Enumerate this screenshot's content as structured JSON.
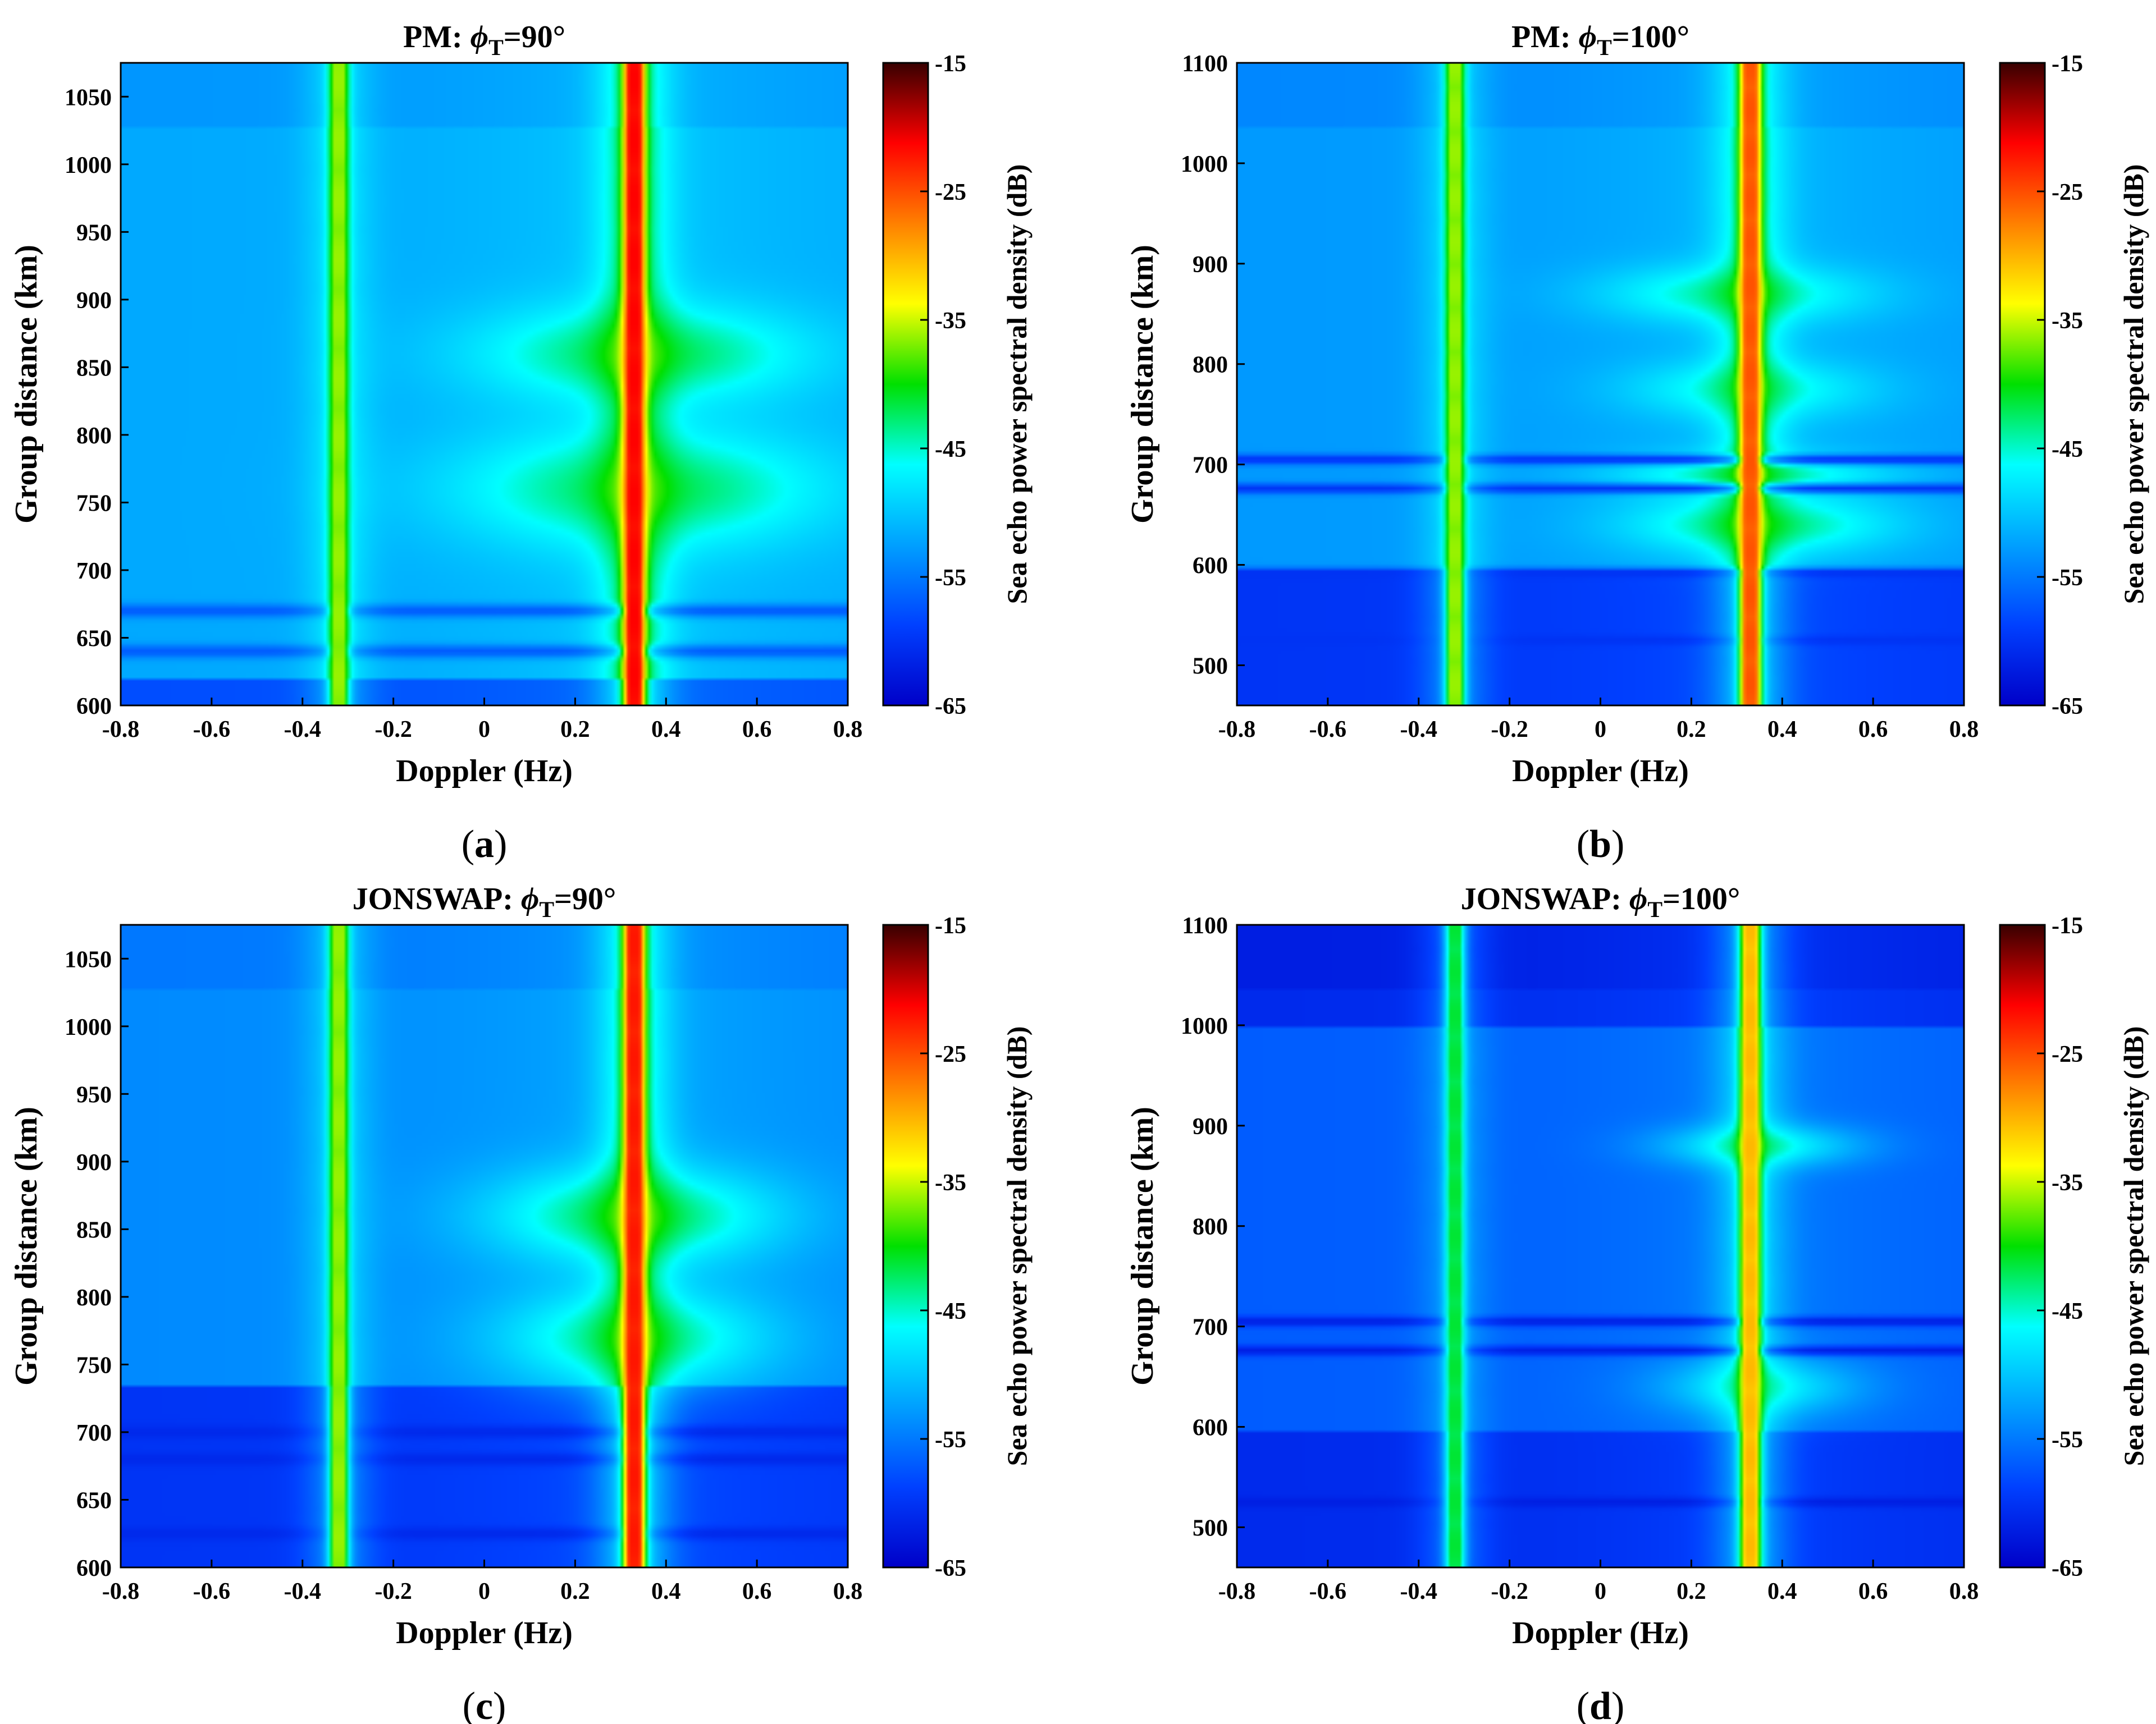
{
  "figure": {
    "colorbar_ticks": [
      "-15",
      "-25",
      "-35",
      "-45",
      "-55",
      "-65"
    ]
  },
  "chart_data": [
    {
      "type": "heatmap",
      "panel_label": "a",
      "title_prefix": "PM: ",
      "title_symbol": "ϕ",
      "title_subscript": "T",
      "title_suffix": "=90°",
      "xlabel": "Doppler (Hz)",
      "ylabel": "Group distance (km)",
      "colorbar_label": "Sea echo power spectral density (dB)",
      "xlim": [
        -0.8,
        0.8
      ],
      "ylim": [
        600,
        1075
      ],
      "clim": [
        -65,
        -15
      ],
      "xticks": [
        -0.8,
        -0.6,
        -0.4,
        -0.2,
        0,
        0.2,
        0.4,
        0.6,
        0.8
      ],
      "yticks": [
        600,
        650,
        700,
        750,
        800,
        850,
        900,
        950,
        1000,
        1050
      ],
      "bragg_peaks": [
        {
          "doppler": -0.32,
          "peak_db": -37,
          "halfwidth": 0.015
        },
        {
          "doppler": 0.33,
          "peak_db": -22,
          "halfwidth": 0.016
        }
      ],
      "background_db": -52,
      "low_range_db": -58,
      "low_range_limit": 620,
      "green_bands": [
        {
          "distance": 860,
          "width": 25,
          "db": -42,
          "center": 0.35,
          "spread": 0.25
        },
        {
          "distance": 760,
          "width": 30,
          "db": -42,
          "center": 0.35,
          "spread": 0.28
        }
      ],
      "dark_lines": [
        {
          "distance": 670,
          "db": -57
        },
        {
          "distance": 640,
          "db": -57
        }
      ]
    },
    {
      "type": "heatmap",
      "panel_label": "b",
      "title_prefix": "PM: ",
      "title_symbol": "ϕ",
      "title_subscript": "T",
      "title_suffix": "=100°",
      "xlabel": "Doppler (Hz)",
      "ylabel": "Group distance (km)",
      "colorbar_label": "Sea echo power spectral density (dB)",
      "xlim": [
        -0.8,
        0.8
      ],
      "ylim": [
        460,
        1100
      ],
      "clim": [
        -65,
        -15
      ],
      "xticks": [
        -0.8,
        -0.6,
        -0.4,
        -0.2,
        0,
        0.2,
        0.4,
        0.6,
        0.8
      ],
      "yticks": [
        500,
        600,
        700,
        800,
        900,
        1000,
        1100
      ],
      "bragg_peaks": [
        {
          "doppler": -0.32,
          "peak_db": -37,
          "halfwidth": 0.015
        },
        {
          "doppler": 0.33,
          "peak_db": -26,
          "halfwidth": 0.016
        }
      ],
      "background_db": -53,
      "low_range_db": -60,
      "low_range_limit": 595,
      "green_bands": [
        {
          "distance": 870,
          "width": 20,
          "db": -44,
          "center": 0.3,
          "spread": 0.2
        },
        {
          "distance": 775,
          "width": 20,
          "db": -45,
          "center": 0.33,
          "spread": 0.18
        },
        {
          "distance": 690,
          "width": 15,
          "db": -44,
          "center": 0.33,
          "spread": 0.2
        },
        {
          "distance": 640,
          "width": 20,
          "db": -43,
          "center": 0.35,
          "spread": 0.2
        }
      ],
      "dark_lines": [
        {
          "distance": 705,
          "db": -60
        },
        {
          "distance": 676,
          "db": -60
        },
        {
          "distance": 592,
          "db": -60
        },
        {
          "distance": 525,
          "db": -60
        }
      ]
    },
    {
      "type": "heatmap",
      "panel_label": "c",
      "title_prefix": "JONSWAP: ",
      "title_symbol": "ϕ",
      "title_subscript": "T",
      "title_suffix": "=90°",
      "xlabel": "Doppler (Hz)",
      "ylabel": "Group distance (km)",
      "colorbar_label": "Sea echo power spectral density (dB)",
      "xlim": [
        -0.8,
        0.8
      ],
      "ylim": [
        600,
        1075
      ],
      "clim": [
        -65,
        -15
      ],
      "xticks": [
        -0.8,
        -0.6,
        -0.4,
        -0.2,
        0,
        0.2,
        0.4,
        0.6,
        0.8
      ],
      "yticks": [
        600,
        650,
        700,
        750,
        800,
        850,
        900,
        950,
        1000,
        1050
      ],
      "bragg_peaks": [
        {
          "doppler": -0.32,
          "peak_db": -37,
          "halfwidth": 0.015
        },
        {
          "doppler": 0.33,
          "peak_db": -23,
          "halfwidth": 0.016
        }
      ],
      "background_db": -54,
      "low_range_db": -60,
      "low_range_limit": 735,
      "green_bands": [
        {
          "distance": 860,
          "width": 25,
          "db": -42,
          "center": 0.33,
          "spread": 0.22
        },
        {
          "distance": 770,
          "width": 25,
          "db": -43,
          "center": 0.33,
          "spread": 0.2
        }
      ],
      "dark_lines": [
        {
          "distance": 700,
          "db": -61
        },
        {
          "distance": 680,
          "db": -61
        },
        {
          "distance": 625,
          "db": -61
        }
      ]
    },
    {
      "type": "heatmap",
      "panel_label": "d",
      "title_prefix": "JONSWAP: ",
      "title_symbol": "ϕ",
      "title_subscript": "T",
      "title_suffix": "=100°",
      "xlabel": "Doppler (Hz)",
      "ylabel": "Group distance (km)",
      "colorbar_label": "Sea echo power spectral density (dB)",
      "xlim": [
        -0.8,
        0.8
      ],
      "ylim": [
        460,
        1100
      ],
      "clim": [
        -65,
        -15
      ],
      "xticks": [
        -0.8,
        -0.6,
        -0.4,
        -0.2,
        0,
        0.2,
        0.4,
        0.6,
        0.8
      ],
      "yticks": [
        500,
        600,
        700,
        800,
        900,
        1000,
        1100
      ],
      "bragg_peaks": [
        {
          "doppler": -0.32,
          "peak_db": -42,
          "halfwidth": 0.015
        },
        {
          "doppler": 0.33,
          "peak_db": -31,
          "halfwidth": 0.016
        }
      ],
      "background_db": -57,
      "low_range_db": -61,
      "low_range_limit": 595,
      "top_range_db": -61,
      "top_range_limit": 1000,
      "green_bands": [
        {
          "distance": 880,
          "width": 15,
          "db": -46,
          "center": 0.35,
          "spread": 0.15
        },
        {
          "distance": 640,
          "width": 20,
          "db": -47,
          "center": 0.35,
          "spread": 0.15
        }
      ],
      "dark_lines": [
        {
          "distance": 705,
          "db": -62
        },
        {
          "distance": 676,
          "db": -62
        },
        {
          "distance": 525,
          "db": -62
        }
      ]
    }
  ]
}
